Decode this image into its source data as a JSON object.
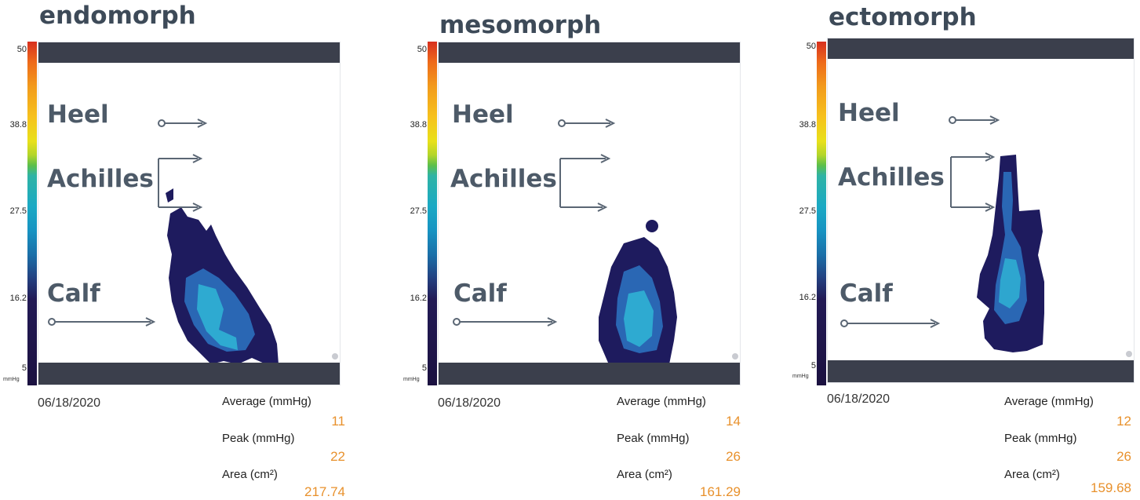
{
  "scale": {
    "ticks": [
      "50",
      "38.8",
      "27.5",
      "16.2",
      "5"
    ],
    "unit": "mmHg"
  },
  "labels": {
    "heel": "Heel",
    "achilles": "Achilles",
    "calf": "Calf",
    "average": "Average (mmHg)",
    "peak": "Peak (mmHg)",
    "area": "Area (cm²)"
  },
  "panels": [
    {
      "title": "endomorph",
      "date": "06/18/2020",
      "average": "11",
      "peak": "22",
      "area": "217.74"
    },
    {
      "title": "mesomorph",
      "date": "06/18/2020",
      "average": "14",
      "peak": "26",
      "area": "161.29"
    },
    {
      "title": "ectomorph",
      "date": "06/18/2020",
      "average": "12",
      "peak": "26",
      "area": "159.68"
    }
  ],
  "colors": {
    "heatmap_dark": "#1e1b5e",
    "heatmap_mid": "#2a67b4",
    "heatmap_hot": "#2fb6d6",
    "value_text": "#e8912c",
    "bar": "#3b3f4c"
  }
}
